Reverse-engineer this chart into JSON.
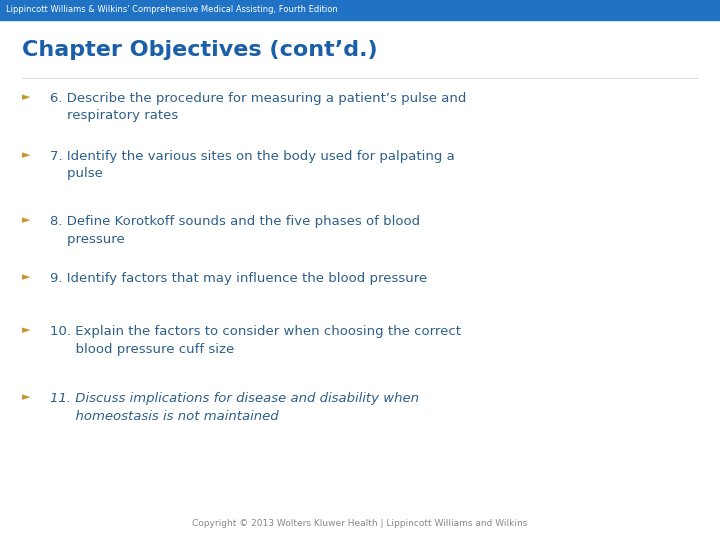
{
  "header_text": "Lippincott Williams & Wilkins' Comprehensive Medical Assisting, Fourth Edition",
  "header_bg": "#1F72C4",
  "header_text_color": "#FFFFFF",
  "title": "Chapter Objectives (cont’d.)",
  "title_color": "#1A5FA8",
  "bg_color": "#FFFFFF",
  "bullet_color": "#C8962E",
  "bullet_char": "►",
  "text_color": "#2E5F8A",
  "items": [
    {
      "text": "6. Describe the procedure for measuring a patient’s pulse and\n    respiratory rates",
      "italic": false
    },
    {
      "text": "7. Identify the various sites on the body used for palpating a\n    pulse",
      "italic": false
    },
    {
      "text": "8. Define Korotkoff sounds and the five phases of blood\n    pressure",
      "italic": false
    },
    {
      "text": "9. Identify factors that may influence the blood pressure",
      "italic": false
    },
    {
      "text": "10. Explain the factors to consider when choosing the correct\n      blood pressure cuff size",
      "italic": false
    },
    {
      "text": "11. Discuss implications for disease and disability when\n      homeostasis is not maintained",
      "italic": true
    }
  ],
  "footer_text": "Copyright © 2013 Wolters Kluwer Health | Lippincott Williams and Wilkins",
  "footer_color": "#888888",
  "header_fontsize": 6.0,
  "title_fontsize": 16,
  "body_fontsize": 9.5,
  "bullet_fontsize": 8,
  "footer_fontsize": 6.5
}
